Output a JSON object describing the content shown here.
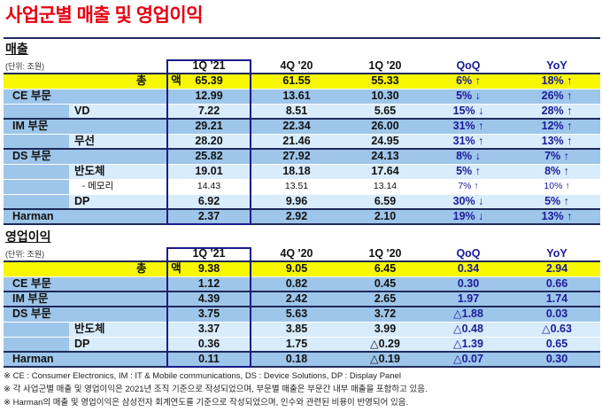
{
  "title": "사업군별 매출 및 영업이익",
  "sales": {
    "heading": "매출",
    "unit": "(단위: 조원)",
    "columns": [
      "1Q '21",
      "4Q '20",
      "1Q '20",
      "QoQ",
      "YoY"
    ],
    "rows": [
      {
        "type": "total",
        "label": "총        액",
        "v": [
          "65.39",
          "61.55",
          "55.33",
          "6% ↑",
          "18% ↑"
        ]
      },
      {
        "type": "par",
        "label": "CE 부문",
        "v": [
          "12.99",
          "13.61",
          "10.30",
          "5% ↓",
          "26% ↑"
        ]
      },
      {
        "type": "sub",
        "label": "VD",
        "v": [
          "7.22",
          "8.51",
          "5.65",
          "15% ↓",
          "28% ↑"
        ],
        "end": true
      },
      {
        "type": "par",
        "label": "IM 부문",
        "v": [
          "29.21",
          "22.34",
          "26.00",
          "31% ↑",
          "12% ↑"
        ]
      },
      {
        "type": "sub",
        "label": "무선",
        "v": [
          "28.20",
          "21.46",
          "24.95",
          "31% ↑",
          "13% ↑"
        ],
        "end": true
      },
      {
        "type": "par",
        "label": "DS 부문",
        "v": [
          "25.82",
          "27.92",
          "24.13",
          "8% ↓",
          "7% ↑"
        ]
      },
      {
        "type": "sub",
        "label": "반도체",
        "v": [
          "19.01",
          "18.18",
          "17.64",
          "5% ↑",
          "8% ↑"
        ]
      },
      {
        "type": "sub white",
        "label": "   - 메모리",
        "v": [
          "14.43",
          "13.51",
          "13.14",
          "7% ↑",
          "10% ↑"
        ]
      },
      {
        "type": "sub",
        "label": "DP",
        "v": [
          "6.92",
          "9.96",
          "6.59",
          "30% ↓",
          "5% ↑"
        ],
        "end": true
      },
      {
        "type": "par",
        "label": "Harman",
        "v": [
          "2.37",
          "2.92",
          "2.10",
          "19% ↓",
          "13% ↑"
        ],
        "end": true
      }
    ]
  },
  "profit": {
    "heading": "영업이익",
    "unit": "(단위: 조원)",
    "columns": [
      "1Q '21",
      "4Q '20",
      "1Q '20",
      "QoQ",
      "YoY"
    ],
    "rows": [
      {
        "type": "total",
        "label": "총        액",
        "v": [
          "9.38",
          "9.05",
          "6.45",
          "0.34",
          "2.94"
        ]
      },
      {
        "type": "par",
        "label": "CE 부문",
        "v": [
          "1.12",
          "0.82",
          "0.45",
          "0.30",
          "0.66"
        ],
        "end": true
      },
      {
        "type": "par",
        "label": "IM 부문",
        "v": [
          "4.39",
          "2.42",
          "2.65",
          "1.97",
          "1.74"
        ],
        "end": true
      },
      {
        "type": "par",
        "label": "DS 부문",
        "v": [
          "3.75",
          "5.63",
          "3.72",
          "△1.88",
          "0.03"
        ]
      },
      {
        "type": "sub",
        "label": "반도체",
        "v": [
          "3.37",
          "3.85",
          "3.99",
          "△0.48",
          "△0.63"
        ]
      },
      {
        "type": "sub",
        "label": "DP",
        "v": [
          "0.36",
          "1.75",
          "△0.29",
          "△1.39",
          "0.65"
        ],
        "end": true
      },
      {
        "type": "par",
        "label": "Harman",
        "v": [
          "0.11",
          "0.18",
          "△0.19",
          "△0.07",
          "0.30"
        ],
        "end": true
      }
    ]
  },
  "notes": [
    "※ CE : Consumer Electronics,  IM : IT & Mobile communications,  DS : Device Solutions,  DP : Display Panel",
    "※ 각 사업군별 매출 및 영업이익은 2021년 조직 기준으로 작성되었으며, 부문별 매출은 부문간 내부 매출을 포함하고 있음.",
    "※ Harman의 매출 및 영업이익은 삼성전자 회계연도를 기준으로 작성되었으며, 인수와 관련된 비용이 반영되어 있음."
  ],
  "colors": {
    "title": "#e60012",
    "total": "#f7f700",
    "parent": "#9ec6ea",
    "sub": "#d8ecfb",
    "accent": "#1a1a9a"
  }
}
